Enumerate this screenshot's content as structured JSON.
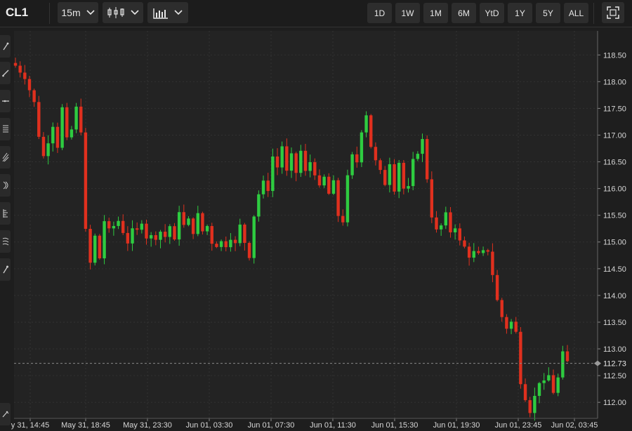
{
  "toolbar": {
    "symbol": "CL1",
    "interval": "15m",
    "chart_style_icon": "candlestick-icon",
    "studies_icon": "bar-chart-icon",
    "ranges": [
      "1D",
      "1W",
      "1M",
      "6M",
      "YtD",
      "1Y",
      "5Y",
      "ALL"
    ],
    "fullscreen_icon": "fullscreen-icon"
  },
  "sidebar": {
    "tools": [
      "pencil-icon",
      "line-tool-icon",
      "horizontal-line-icon",
      "fib-icon",
      "pitchfork-icon",
      "arc-icon",
      "ruler-icon",
      "wave-icon",
      "brush-icon",
      "trash-icon"
    ]
  },
  "colors": {
    "up": "#2ecc40",
    "down": "#e0301e",
    "background": "#1e1e1e",
    "grid": "#333333"
  },
  "chart_data": {
    "type": "candlestick",
    "symbol": "CL1",
    "interval": "15m",
    "ylim": [
      111.7,
      118.95
    ],
    "y_ticks": [
      "112.00",
      "112.50",
      "113.00",
      "113.50",
      "114.00",
      "114.50",
      "115.00",
      "115.50",
      "116.00",
      "116.50",
      "117.00",
      "117.50",
      "118.00",
      "118.50"
    ],
    "x_ticks": [
      "y 31, 14:45",
      "May 31, 18:45",
      "May 31, 23:30",
      "Jun 01, 03:30",
      "Jun 01, 07:30",
      "Jun 01, 11:30",
      "Jun 01, 15:30",
      "Jun 01, 19:30",
      "Jun 01, 23:45",
      "Jun 02, 03:45"
    ],
    "last_price": "112.73",
    "close_path": [
      [
        0,
        118.3
      ],
      [
        2,
        118.1
      ],
      [
        4,
        117.6
      ],
      [
        5,
        117.0
      ],
      [
        6,
        116.6
      ],
      [
        7,
        116.9
      ],
      [
        8,
        117.2
      ],
      [
        9,
        116.8
      ],
      [
        10,
        117.5
      ],
      [
        11,
        116.9
      ],
      [
        12,
        117.1
      ],
      [
        13,
        117.5
      ],
      [
        14,
        117.1
      ],
      [
        15,
        115.2
      ],
      [
        16,
        114.6
      ],
      [
        17,
        115.1
      ],
      [
        18,
        114.7
      ],
      [
        19,
        115.4
      ],
      [
        20,
        115.2
      ],
      [
        22,
        115.4
      ],
      [
        24,
        115.0
      ],
      [
        25,
        115.2
      ],
      [
        26,
        115.2
      ],
      [
        27,
        115.4
      ],
      [
        28,
        115.1
      ],
      [
        30,
        115.1
      ],
      [
        31,
        115.2
      ],
      [
        32,
        115.1
      ],
      [
        33,
        115.3
      ],
      [
        34,
        115.0
      ],
      [
        35,
        115.6
      ],
      [
        36,
        115.3
      ],
      [
        37,
        115.4
      ],
      [
        38,
        115.2
      ],
      [
        39,
        115.5
      ],
      [
        40,
        115.2
      ],
      [
        41,
        115.3
      ],
      [
        42,
        115.0
      ],
      [
        43,
        114.95
      ],
      [
        44,
        115.0
      ],
      [
        45,
        114.95
      ],
      [
        46,
        115.1
      ],
      [
        47,
        114.95
      ],
      [
        48,
        115.3
      ],
      [
        49,
        115.0
      ],
      [
        50,
        114.75
      ],
      [
        51,
        115.5
      ],
      [
        52,
        115.9
      ],
      [
        53,
        116.1
      ],
      [
        54,
        116.0
      ],
      [
        55,
        116.6
      ],
      [
        56,
        116.4
      ],
      [
        57,
        116.8
      ],
      [
        58,
        116.3
      ],
      [
        59,
        116.6
      ],
      [
        60,
        116.3
      ],
      [
        61,
        116.7
      ],
      [
        62,
        116.3
      ],
      [
        63,
        116.5
      ],
      [
        64,
        116.3
      ],
      [
        65,
        116.0
      ],
      [
        66,
        116.2
      ],
      [
        67,
        115.9
      ],
      [
        68,
        116.1
      ],
      [
        69,
        115.5
      ],
      [
        70,
        115.4
      ],
      [
        71,
        116.2
      ],
      [
        72,
        116.6
      ],
      [
        73,
        116.5
      ],
      [
        74,
        117.1
      ],
      [
        75,
        117.4
      ],
      [
        76,
        116.8
      ],
      [
        77,
        116.5
      ],
      [
        78,
        116.3
      ],
      [
        79,
        116.1
      ],
      [
        80,
        116.5
      ],
      [
        81,
        116.0
      ],
      [
        82,
        116.5
      ],
      [
        83,
        116.0
      ],
      [
        84,
        116.0
      ],
      [
        85,
        116.5
      ],
      [
        86,
        116.7
      ],
      [
        87,
        116.9
      ],
      [
        88,
        116.2
      ],
      [
        89,
        115.5
      ],
      [
        90,
        115.2
      ],
      [
        91,
        115.3
      ],
      [
        92,
        115.5
      ],
      [
        93,
        115.2
      ],
      [
        94,
        115.3
      ],
      [
        95,
        115.0
      ],
      [
        96,
        114.9
      ],
      [
        97,
        114.75
      ],
      [
        98,
        114.8
      ],
      [
        99,
        114.75
      ],
      [
        100,
        114.8
      ],
      [
        101,
        114.85
      ],
      [
        102,
        114.4
      ],
      [
        103,
        113.9
      ],
      [
        104,
        113.6
      ],
      [
        105,
        113.4
      ],
      [
        106,
        113.5
      ],
      [
        107,
        113.3
      ],
      [
        108,
        112.4
      ],
      [
        109,
        112.1
      ],
      [
        110,
        111.85
      ],
      [
        111,
        112.1
      ],
      [
        112,
        112.4
      ],
      [
        113,
        112.35
      ],
      [
        114,
        112.5
      ],
      [
        115,
        112.2
      ],
      [
        116,
        112.45
      ],
      [
        117,
        112.9
      ],
      [
        118,
        112.75
      ]
    ]
  }
}
